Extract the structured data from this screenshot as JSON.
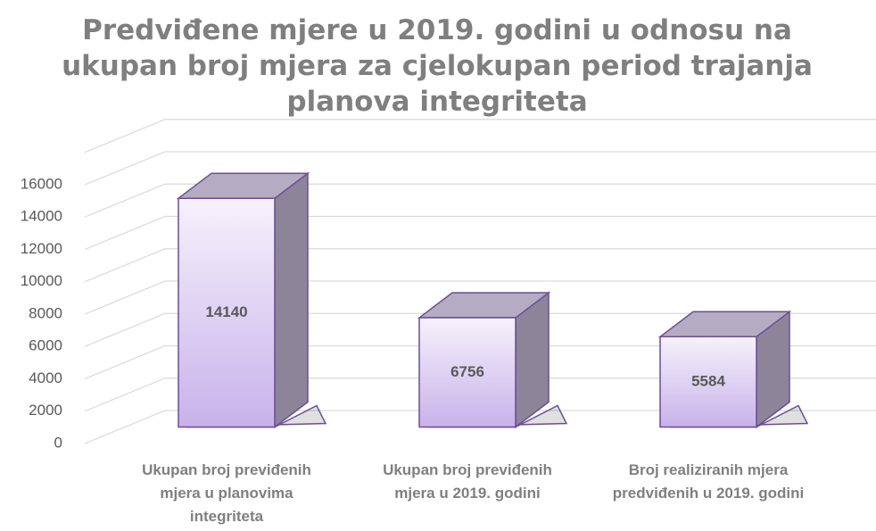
{
  "chart_data": {
    "type": "bar3d",
    "title": "Predviđene mjere u 2019. godini u odnosu na ukupan broj mjera za cjelokupan period trajanja planova integriteta",
    "categories": [
      "Ukupan broj previđenih mjera u planovima integriteta",
      "Ukupan broj previđenih mjera u 2019. godini",
      "Broj realiziranih mjera predviđenih u 2019. godini"
    ],
    "values": [
      14140,
      6756,
      5584
    ],
    "color": "#d9c9f0",
    "ylim": [
      0,
      18000
    ],
    "yticks": [
      0,
      2000,
      4000,
      6000,
      8000,
      10000,
      12000,
      14000,
      16000
    ],
    "grid": true
  }
}
